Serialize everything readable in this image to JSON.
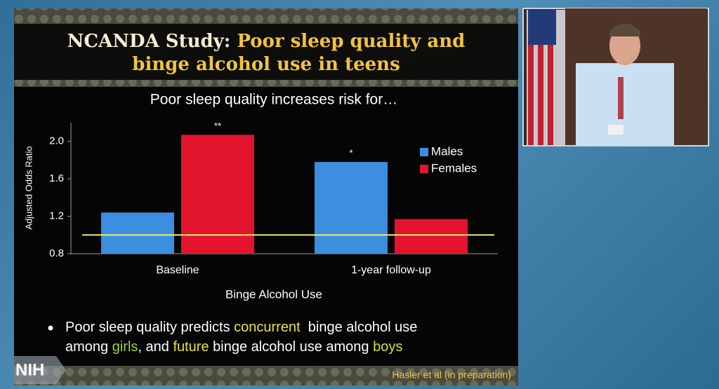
{
  "slide": {
    "title": [
      {
        "text": "NCANDA Study: ",
        "color": "#f3efcf"
      },
      {
        "text": "Poor sleep quality and",
        "color": "#f2c43a"
      }
    ],
    "title_line2": [
      {
        "text": "binge alcohol use in teens",
        "color": "#f2c43a"
      }
    ],
    "bullet": [
      {
        "text": "Poor sleep quality predicts ",
        "color": "#ffffff"
      },
      {
        "text": "concurrent",
        "color": "#e8e23a"
      },
      {
        "text": "  binge alcohol use",
        "color": "#ffffff"
      }
    ],
    "bullet_line2": [
      {
        "text": "among ",
        "color": "#ffffff"
      },
      {
        "text": "girls",
        "color": "#9fd23a"
      },
      {
        "text": ", and ",
        "color": "#ffffff"
      },
      {
        "text": "future",
        "color": "#e8e23a"
      },
      {
        "text": " binge alcohol use among ",
        "color": "#ffffff"
      },
      {
        "text": "boys",
        "color": "#cfe03a"
      }
    ],
    "citation": "Hasler et al (in preparation)",
    "logo": "NIH"
  },
  "chart_data": {
    "type": "bar",
    "title": "Poor sleep quality increases risk for…",
    "x_label": "Binge Alcohol Use",
    "y_label": "Adjusted Odds Ratio",
    "categories": [
      "Baseline",
      "1-year follow-up"
    ],
    "series": [
      {
        "name": "Males",
        "color": "#3b8ee0",
        "values": [
          1.24,
          1.78
        ],
        "significance": [
          null,
          "*"
        ]
      },
      {
        "name": "Females",
        "color": "#e3142d",
        "values": [
          2.07,
          1.17
        ],
        "significance": [
          "**",
          null
        ]
      }
    ],
    "ylim": [
      0.8,
      2.2
    ],
    "yticks": [
      0.8,
      1.2,
      1.6,
      {
        "value": 2,
        "label": "2.0"
      }
    ],
    "reference_line": 1,
    "reference_color": "#e6f06a",
    "legend": "upper right"
  }
}
